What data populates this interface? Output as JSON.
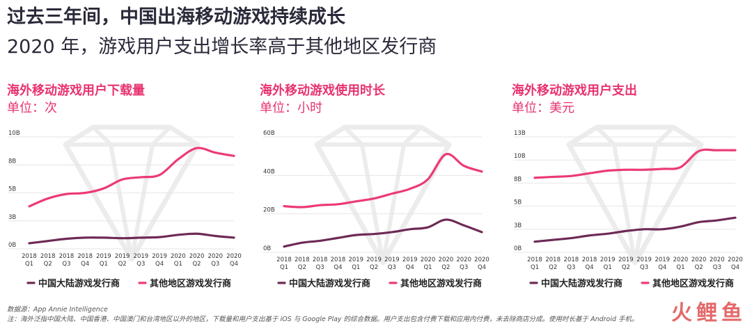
{
  "header": {
    "title": "过去三年间，中国出海移动游戏持续成长",
    "subtitle": "2020 年，游戏用户支出增长率高于其他地区发行商"
  },
  "colors": {
    "china": "#6e2a55",
    "other": "#ec3a77",
    "accent": "#e8336f"
  },
  "footer": {
    "source": "数据源：App Annie Intelligence",
    "note": "注：海外泛指中国大陆、中国香港、中国澳门和台湾地区以外的地区，下载量和用户支出基于 iOS 与 Google Play 的综合数据。用户支出包含付费下载和应用内付费，未去除商店分成。使用时长基于 Android 手机。"
  },
  "watermark": "火鲤鱼",
  "chart_data": [
    {
      "type": "line",
      "title": "海外移动游戏用户下载量",
      "unit": "单位：次",
      "categories": [
        [
          "2018",
          "Q1"
        ],
        [
          "2018",
          "Q2"
        ],
        [
          "2018",
          "Q3"
        ],
        [
          "2018",
          "Q4"
        ],
        [
          "2019",
          "Q1"
        ],
        [
          "2019",
          "Q2"
        ],
        [
          "2019",
          "Q3"
        ],
        [
          "2019",
          "Q4"
        ],
        [
          "2020",
          "Q1"
        ],
        [
          "2020",
          "Q2"
        ],
        [
          "2020",
          "Q3"
        ],
        [
          "2020",
          "Q4"
        ]
      ],
      "yticks": [
        "0B",
        "3B",
        "5B",
        "8B",
        "10B"
      ],
      "ylim": [
        0,
        10
      ],
      "series": [
        {
          "name": "中国大陆游戏发行商",
          "key": "china",
          "values": [
            0.5,
            0.7,
            0.9,
            1.0,
            1.0,
            0.95,
            1.0,
            1.05,
            1.25,
            1.35,
            1.15,
            1.0
          ]
        },
        {
          "name": "其他地区游戏发行商",
          "key": "other",
          "values": [
            3.8,
            4.5,
            4.9,
            5.0,
            5.4,
            6.2,
            6.4,
            6.6,
            8.0,
            9.0,
            8.6,
            8.3
          ]
        }
      ],
      "legend": "bottom"
    },
    {
      "type": "line",
      "title": "海外移动游戏使用时长",
      "unit": "单位：小时",
      "categories": [
        [
          "2018",
          "Q1"
        ],
        [
          "2018",
          "Q2"
        ],
        [
          "2018",
          "Q3"
        ],
        [
          "2018",
          "Q4"
        ],
        [
          "2019",
          "Q1"
        ],
        [
          "2019",
          "Q2"
        ],
        [
          "2019",
          "Q3"
        ],
        [
          "2019",
          "Q4"
        ],
        [
          "2020",
          "Q1"
        ],
        [
          "2020",
          "Q2"
        ],
        [
          "2020",
          "Q3"
        ],
        [
          "2020",
          "Q4"
        ]
      ],
      "yticks": [
        "0B",
        "20B",
        "40B",
        "60B"
      ],
      "ylim": [
        0,
        60
      ],
      "series": [
        {
          "name": "中国大陆游戏发行商",
          "key": "china",
          "values": [
            3,
            5,
            6,
            7.5,
            9,
            9.5,
            10.5,
            12,
            13,
            17,
            14,
            10.5
          ]
        },
        {
          "name": "其他地区游戏发行商",
          "key": "other",
          "values": [
            24,
            23.5,
            24.5,
            25,
            26.5,
            28,
            30.5,
            33,
            38,
            51,
            45,
            42
          ]
        }
      ],
      "legend": "bottom"
    },
    {
      "type": "line",
      "title": "海外移动游戏用户支出",
      "unit": "单位：美元",
      "categories": [
        [
          "2018",
          "Q1"
        ],
        [
          "2018",
          "Q2"
        ],
        [
          "2018",
          "Q3"
        ],
        [
          "2018",
          "Q4"
        ],
        [
          "2019",
          "Q1"
        ],
        [
          "2019",
          "Q2"
        ],
        [
          "2019",
          "Q3"
        ],
        [
          "2019",
          "Q4"
        ],
        [
          "2020",
          "Q1"
        ],
        [
          "2020",
          "Q2"
        ],
        [
          "2020",
          "Q3"
        ],
        [
          "2020",
          "Q4"
        ]
      ],
      "yticks": [
        "0B",
        "3B",
        "5B",
        "8B",
        "10B",
        "13B"
      ],
      "ylim": [
        0,
        13
      ],
      "series": [
        {
          "name": "中国大陆游戏发行商",
          "key": "china",
          "values": [
            1.2,
            1.4,
            1.6,
            1.9,
            2.1,
            2.4,
            2.6,
            2.6,
            2.9,
            3.4,
            3.6,
            3.9
          ]
        },
        {
          "name": "其他地区游戏发行商",
          "key": "other",
          "values": [
            8.4,
            8.5,
            8.6,
            8.9,
            9.2,
            9.3,
            9.3,
            9.4,
            9.6,
            11.4,
            11.5,
            11.5
          ]
        }
      ],
      "legend": "bottom"
    }
  ]
}
